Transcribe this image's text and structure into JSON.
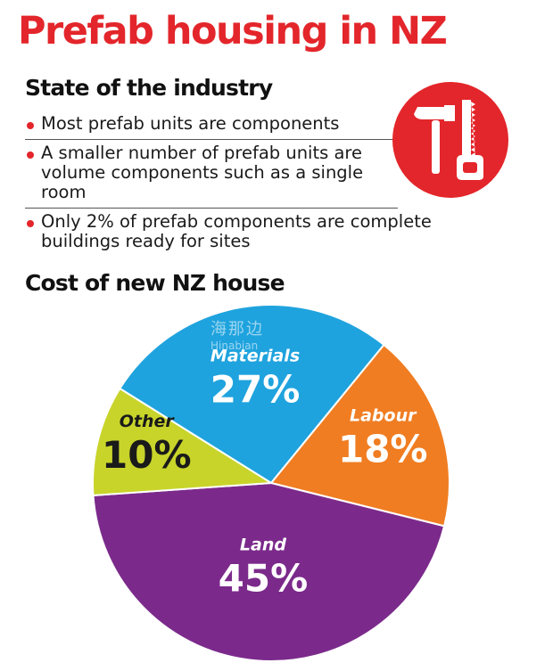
{
  "header": {
    "title": "Prefab housing in NZ",
    "subtitle": "State of the industry"
  },
  "bullets": [
    "Most prefab units are components",
    "A smaller number of prefab units are volume components such as a single room",
    "Only 2% of prefab components are complete buildings ready for sites"
  ],
  "icons": {
    "badge": "hammer-and-saw-icon"
  },
  "colors": {
    "red": "#e3262b",
    "materials": "#1fa3de",
    "labour": "#f07d22",
    "land": "#7b2a8b",
    "other": "#c8d42a"
  },
  "watermark": {
    "cn": "海那边",
    "en": "Hinabian"
  },
  "chart_data": {
    "type": "pie",
    "title": "Cost of new NZ house",
    "slices": [
      {
        "label": "Materials",
        "value": 27,
        "value_label": "27%",
        "color": "#1fa3de"
      },
      {
        "label": "Labour",
        "value": 18,
        "value_label": "18%",
        "color": "#f07d22"
      },
      {
        "label": "Land",
        "value": 45,
        "value_label": "45%",
        "color": "#7b2a8b"
      },
      {
        "label": "Other",
        "value": 10,
        "value_label": "10%",
        "color": "#c8d42a"
      }
    ]
  }
}
